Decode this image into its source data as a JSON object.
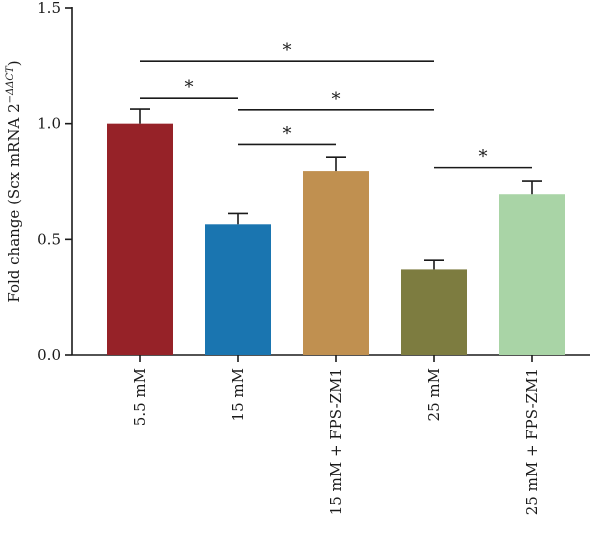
{
  "chart_data": {
    "type": "bar",
    "title": "",
    "xlabel": "",
    "ylabel": "Fold change (Scx mRNA 2",
    "ylabel_superscript": "−ΔΔCT",
    "ylabel_close": ")",
    "ylim": [
      0,
      1.5
    ],
    "yticks": [
      0.0,
      0.5,
      1.0,
      1.5
    ],
    "ytick_labels": [
      "0.0",
      "0.5",
      "1.0",
      "1.5"
    ],
    "grid": false,
    "categories": [
      "5.5 mM",
      "15 mM",
      "15 mM + FPS-ZM1",
      "25 mM",
      "25 mM + FPS-ZM1"
    ],
    "values": [
      1.0,
      0.565,
      0.795,
      0.37,
      0.695
    ],
    "errors": [
      0.063,
      0.047,
      0.06,
      0.04,
      0.057
    ],
    "colors": [
      "#962228",
      "#1a75b0",
      "#c09050",
      "#7d7c40",
      "#a9d4a6"
    ],
    "significance": [
      {
        "from": 0,
        "to": 1,
        "y": 1.11,
        "label": "*"
      },
      {
        "from": 0,
        "to": 3,
        "y": 1.27,
        "label": "*"
      },
      {
        "from": 1,
        "to": 2,
        "y": 0.91,
        "label": "*"
      },
      {
        "from": 1,
        "to": 3,
        "y": 1.06,
        "label": "*"
      },
      {
        "from": 3,
        "to": 4,
        "y": 0.81,
        "label": "*"
      }
    ]
  }
}
